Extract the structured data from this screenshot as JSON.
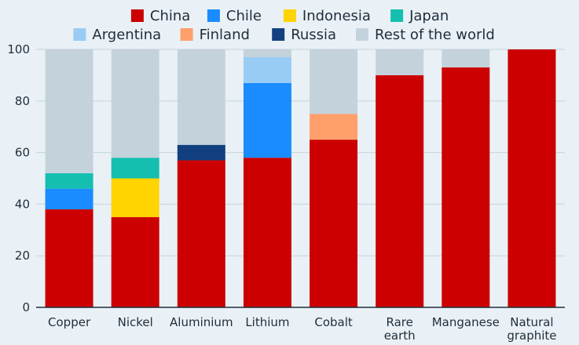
{
  "chart_data": {
    "type": "bar",
    "stacked": true,
    "categories": [
      "Copper",
      "Nickel",
      "Aluminium",
      "Lithium",
      "Cobalt",
      "Rare earth",
      "Manganese",
      "Natural graphite"
    ],
    "series": [
      {
        "name": "China",
        "color": "#cc0000",
        "values": [
          38,
          35,
          57,
          58,
          65,
          90,
          93,
          100
        ]
      },
      {
        "name": "Chile",
        "color": "#1a8cff",
        "values": [
          8,
          0,
          0,
          29,
          0,
          0,
          0,
          0
        ]
      },
      {
        "name": "Indonesia",
        "color": "#ffd400",
        "values": [
          0,
          15,
          0,
          0,
          0,
          0,
          0,
          0
        ]
      },
      {
        "name": "Japan",
        "color": "#14bfb0",
        "values": [
          6,
          8,
          0,
          0,
          0,
          0,
          0,
          0
        ]
      },
      {
        "name": "Argentina",
        "color": "#99ccf5",
        "values": [
          0,
          0,
          0,
          10,
          0,
          0,
          0,
          0
        ]
      },
      {
        "name": "Finland",
        "color": "#ff9f6b",
        "values": [
          0,
          0,
          0,
          0,
          10,
          0,
          0,
          0
        ]
      },
      {
        "name": "Russia",
        "color": "#123f80",
        "values": [
          0,
          0,
          6,
          0,
          0,
          0,
          0,
          0
        ]
      },
      {
        "name": "Rest of the world",
        "color": "#c4d2db",
        "values": [
          48,
          42,
          37,
          3,
          25,
          10,
          7,
          0
        ]
      }
    ],
    "ylim": [
      0,
      100
    ],
    "yticks": [
      0,
      20,
      40,
      60,
      80,
      100
    ],
    "grid": true,
    "legend_position": "top"
  }
}
